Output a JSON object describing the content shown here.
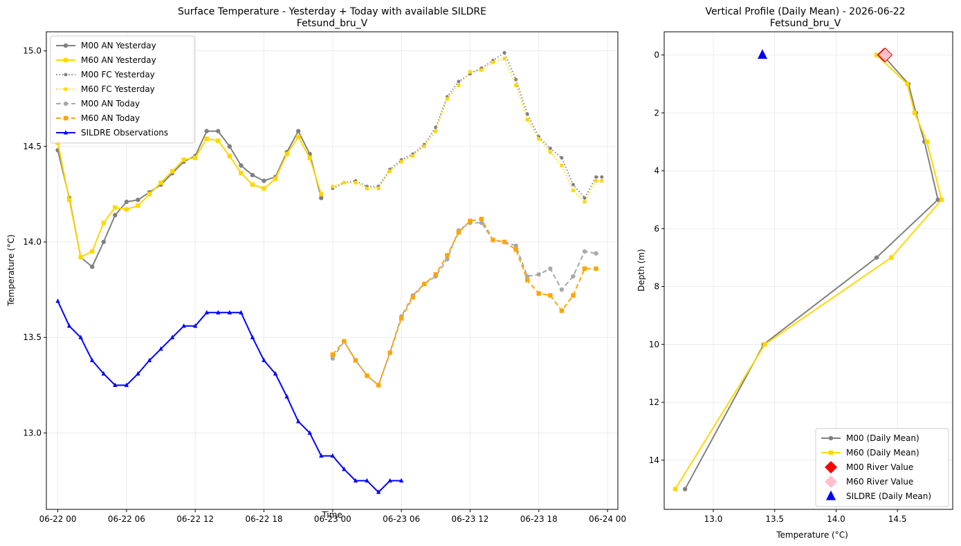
{
  "chart_data": [
    {
      "type": "line",
      "title": "Surface Temperature - Yesterday + Today with available SILDRE",
      "subtitle": "Fetsund_bru_V",
      "xlabel": "Time",
      "ylabel": "Temperature (°C)",
      "x_unit": "hours since 06-22 00:00",
      "xlim": [
        -1.0,
        48.9
      ],
      "ylim": [
        12.6,
        15.1
      ],
      "x_ticks": [
        0,
        6,
        12,
        18,
        24,
        30,
        36,
        42,
        48
      ],
      "x_tick_labels": [
        "06-22 00",
        "06-22 06",
        "06-22 12",
        "06-22 18",
        "06-23 00",
        "06-23 06",
        "06-23 12",
        "06-23 18",
        "06-24 00"
      ],
      "y_ticks": [
        13.0,
        13.5,
        14.0,
        14.5,
        15.0
      ],
      "y_tick_labels": [
        "13.0",
        "13.5",
        "14.0",
        "14.5",
        "15.0"
      ],
      "grid": true,
      "legend_position": "top-left",
      "series": [
        {
          "name": "M00 AN Yesterday",
          "color": "#808080",
          "style": "solid",
          "marker": "circle",
          "x": [
            0,
            1,
            2,
            3,
            4,
            5,
            6,
            7,
            8,
            9,
            10,
            11,
            12,
            13,
            14,
            15,
            16,
            17,
            18,
            19,
            20,
            21,
            22,
            23
          ],
          "y": [
            14.48,
            14.23,
            13.92,
            13.87,
            14.0,
            14.14,
            14.21,
            14.22,
            14.26,
            14.3,
            14.36,
            14.42,
            14.45,
            14.58,
            14.58,
            14.5,
            14.4,
            14.35,
            14.32,
            14.34,
            14.47,
            14.58,
            14.46,
            14.23
          ]
        },
        {
          "name": "M60 AN Yesterday",
          "color": "#FFD700",
          "style": "solid",
          "marker": "square",
          "x": [
            0,
            1,
            2,
            3,
            4,
            5,
            6,
            7,
            8,
            9,
            10,
            11,
            12,
            13,
            14,
            15,
            16,
            17,
            18,
            19,
            20,
            21,
            22,
            23
          ],
          "y": [
            14.52,
            14.22,
            13.92,
            13.95,
            14.1,
            14.18,
            14.17,
            14.19,
            14.25,
            14.31,
            14.37,
            14.43,
            14.44,
            14.54,
            14.53,
            14.45,
            14.36,
            14.3,
            14.28,
            14.33,
            14.46,
            14.55,
            14.44,
            14.25
          ]
        },
        {
          "name": "M00 FC Yesterday",
          "color": "#808080",
          "style": "dotted",
          "marker": "circle",
          "x": [
            24,
            25,
            26,
            27,
            28,
            29,
            30,
            31,
            32,
            33,
            34,
            35,
            36,
            37,
            38,
            39,
            40,
            41,
            42,
            43,
            44,
            45,
            46,
            47,
            47.5
          ],
          "y": [
            14.28,
            14.31,
            14.32,
            14.29,
            14.29,
            14.38,
            14.43,
            14.46,
            14.51,
            14.6,
            14.76,
            14.84,
            14.88,
            14.91,
            14.95,
            14.99,
            14.85,
            14.67,
            14.55,
            14.49,
            14.44,
            14.3,
            14.23,
            14.34,
            14.34
          ]
        },
        {
          "name": "M60 FC Yesterday",
          "color": "#FFD700",
          "style": "dotted",
          "marker": "square",
          "x": [
            24,
            25,
            26,
            27,
            28,
            29,
            30,
            31,
            32,
            33,
            34,
            35,
            36,
            37,
            38,
            39,
            40,
            41,
            42,
            43,
            44,
            45,
            46,
            47,
            47.5
          ],
          "y": [
            14.29,
            14.31,
            14.31,
            14.28,
            14.28,
            14.37,
            14.42,
            14.45,
            14.5,
            14.58,
            14.75,
            14.82,
            14.89,
            14.9,
            14.94,
            14.96,
            14.82,
            14.64,
            14.54,
            14.47,
            14.4,
            14.27,
            14.21,
            14.32,
            14.32
          ]
        },
        {
          "name": "M00 AN Today",
          "color": "#A9A9A9",
          "style": "dashed",
          "marker": "circle",
          "x": [
            24,
            25,
            26,
            27,
            28,
            29,
            30,
            31,
            32,
            33,
            34,
            35,
            36,
            37,
            38,
            39,
            40,
            41,
            42,
            43,
            44,
            45,
            46,
            47
          ],
          "y": [
            13.39,
            13.48,
            13.38,
            13.3,
            13.25,
            13.42,
            13.61,
            13.72,
            13.78,
            13.82,
            13.91,
            14.06,
            14.1,
            14.1,
            14.01,
            14.0,
            13.98,
            13.82,
            13.83,
            13.86,
            13.75,
            13.82,
            13.95,
            13.94
          ]
        },
        {
          "name": "M60 AN Today",
          "color": "#FFA500",
          "style": "dashed",
          "marker": "square",
          "x": [
            24,
            25,
            26,
            27,
            28,
            29,
            30,
            31,
            32,
            33,
            34,
            35,
            36,
            37,
            38,
            39,
            40,
            41,
            42,
            43,
            44,
            45,
            46,
            47
          ],
          "y": [
            13.41,
            13.48,
            13.38,
            13.3,
            13.25,
            13.42,
            13.6,
            13.71,
            13.78,
            13.83,
            13.93,
            14.05,
            14.11,
            14.12,
            14.01,
            14.0,
            13.96,
            13.8,
            13.73,
            13.72,
            13.64,
            13.72,
            13.86,
            13.86
          ]
        },
        {
          "name": "SILDRE Observations",
          "color": "#0000FF",
          "style": "solid",
          "marker": "triangle",
          "x": [
            0,
            1,
            2,
            3,
            4,
            5,
            6,
            7,
            8,
            9,
            10,
            11,
            12,
            13,
            14,
            15,
            16,
            17,
            18,
            19,
            20,
            21,
            22,
            23,
            24,
            25,
            26,
            27,
            28,
            29,
            30
          ],
          "y": [
            13.69,
            13.56,
            13.5,
            13.38,
            13.31,
            13.25,
            13.25,
            13.31,
            13.38,
            13.44,
            13.5,
            13.56,
            13.56,
            13.63,
            13.63,
            13.63,
            13.63,
            13.5,
            13.38,
            13.31,
            13.19,
            13.06,
            13.0,
            12.88,
            12.88,
            12.81,
            12.75,
            12.75,
            12.69,
            12.75,
            12.75
          ]
        }
      ]
    },
    {
      "type": "line",
      "title": "Vertical Profile (Daily Mean) - 2026-06-22",
      "subtitle": "Fetsund_bru_V",
      "xlabel": "Temperature (°C)",
      "ylabel": "Depth (m)",
      "xlim": [
        12.6,
        14.95
      ],
      "ylim": [
        15.7,
        -0.8
      ],
      "y_inverted": true,
      "x_ticks": [
        13.0,
        13.5,
        14.0,
        14.5
      ],
      "x_tick_labels": [
        "13.0",
        "13.5",
        "14.0",
        "14.5"
      ],
      "y_ticks": [
        0,
        2,
        4,
        6,
        8,
        10,
        12,
        14
      ],
      "y_tick_labels": [
        "0",
        "2",
        "4",
        "6",
        "8",
        "10",
        "12",
        "14"
      ],
      "grid": true,
      "legend_position": "lower-right",
      "series": [
        {
          "name": "M00 (Daily Mean)",
          "color": "#808080",
          "style": "solid",
          "marker": "circle",
          "x": [
            14.38,
            14.59,
            14.65,
            14.72,
            14.83,
            14.33,
            13.41,
            12.77
          ],
          "y": [
            0,
            1,
            2,
            3,
            5,
            7,
            10,
            15
          ]
        },
        {
          "name": "M60 (Daily Mean)",
          "color": "#FFD700",
          "style": "solid",
          "marker": "square",
          "x": [
            14.33,
            14.58,
            14.64,
            14.74,
            14.86,
            14.45,
            13.42,
            12.69
          ],
          "y": [
            0,
            1,
            2,
            3,
            5,
            7,
            10,
            15
          ]
        },
        {
          "name": "M00 River Value",
          "color": "#FF0000",
          "style": "none",
          "marker": "diamond",
          "x": [
            14.39
          ],
          "y": [
            0
          ]
        },
        {
          "name": "M60 River Value",
          "color": "#FFC0CB",
          "style": "none",
          "marker": "diamond",
          "x": [
            14.4
          ],
          "y": [
            0
          ]
        },
        {
          "name": "SILDRE (Daily Mean)",
          "color": "#0000FF",
          "style": "none",
          "marker": "triangle",
          "x": [
            13.4
          ],
          "y": [
            0
          ]
        }
      ]
    }
  ]
}
